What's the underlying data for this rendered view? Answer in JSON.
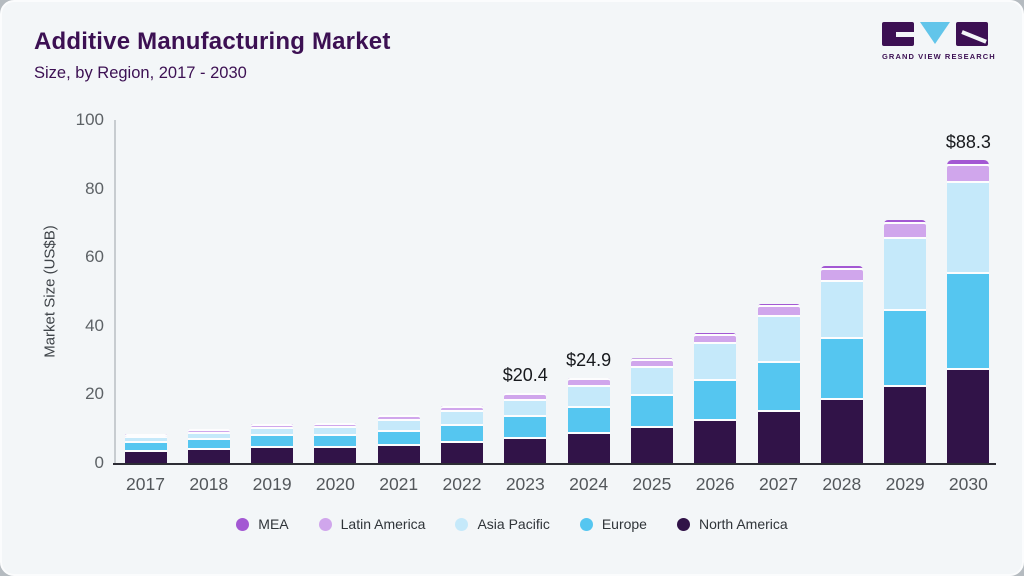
{
  "header": {
    "title": "Additive Manufacturing Market",
    "subtitle": "Size, by Region, 2017 - 2030"
  },
  "logo": {
    "brand": "GRAND VIEW RESEARCH"
  },
  "chart_data": {
    "type": "bar",
    "stacked": true,
    "title": "Additive Manufacturing Market",
    "subtitle": "Size, by Region, 2017 - 2030",
    "ylabel": "Market Size (US$B)",
    "xlabel": "",
    "ylim": [
      0,
      100
    ],
    "yticks": [
      0,
      20,
      40,
      60,
      80,
      100
    ],
    "grid": false,
    "legend_position": "bottom",
    "categories": [
      "2017",
      "2018",
      "2019",
      "2020",
      "2021",
      "2022",
      "2023",
      "2024",
      "2025",
      "2026",
      "2027",
      "2028",
      "2029",
      "2030"
    ],
    "series": [
      {
        "name": "North America",
        "color": "#311348",
        "values": [
          3.3,
          3.7,
          4.4,
          4.3,
          5.0,
          5.9,
          7.1,
          8.4,
          10.2,
          12.3,
          15.0,
          18.4,
          22.3,
          27.1
        ]
      },
      {
        "name": "Europe",
        "color": "#55c6f0",
        "values": [
          2.5,
          2.9,
          3.4,
          3.5,
          4.1,
          5.0,
          6.2,
          7.6,
          9.3,
          11.7,
          14.3,
          17.8,
          22.1,
          27.9
        ]
      },
      {
        "name": "Asia Pacific",
        "color": "#c5e9fa",
        "values": [
          1.5,
          1.8,
          2.2,
          2.4,
          3.1,
          3.9,
          4.9,
          6.3,
          8.2,
          10.6,
          13.2,
          16.7,
          21.0,
          26.6
        ]
      },
      {
        "name": "Latin America",
        "color": "#d0a6ec",
        "values": [
          0.7,
          0.8,
          0.9,
          0.9,
          1.1,
          1.3,
          1.6,
          1.9,
          2.1,
          2.5,
          2.9,
          3.4,
          4.2,
          5.1
        ]
      },
      {
        "name": "MEA",
        "color": "#a358d3",
        "values": [
          0.2,
          0.2,
          0.3,
          0.3,
          0.3,
          0.4,
          0.6,
          0.7,
          0.7,
          0.8,
          1.0,
          1.2,
          1.4,
          1.6
        ]
      }
    ],
    "legend": [
      {
        "label": "MEA",
        "color": "#a358d3"
      },
      {
        "label": "Latin America",
        "color": "#d0a6ec"
      },
      {
        "label": "Asia Pacific",
        "color": "#c5e9fa"
      },
      {
        "label": "Europe",
        "color": "#55c6f0"
      },
      {
        "label": "North America",
        "color": "#311348"
      }
    ],
    "annotations": [
      {
        "category": "2023",
        "text": "$20.4"
      },
      {
        "category": "2024",
        "text": "$24.9"
      },
      {
        "category": "2030",
        "text": "$88.3"
      }
    ]
  }
}
